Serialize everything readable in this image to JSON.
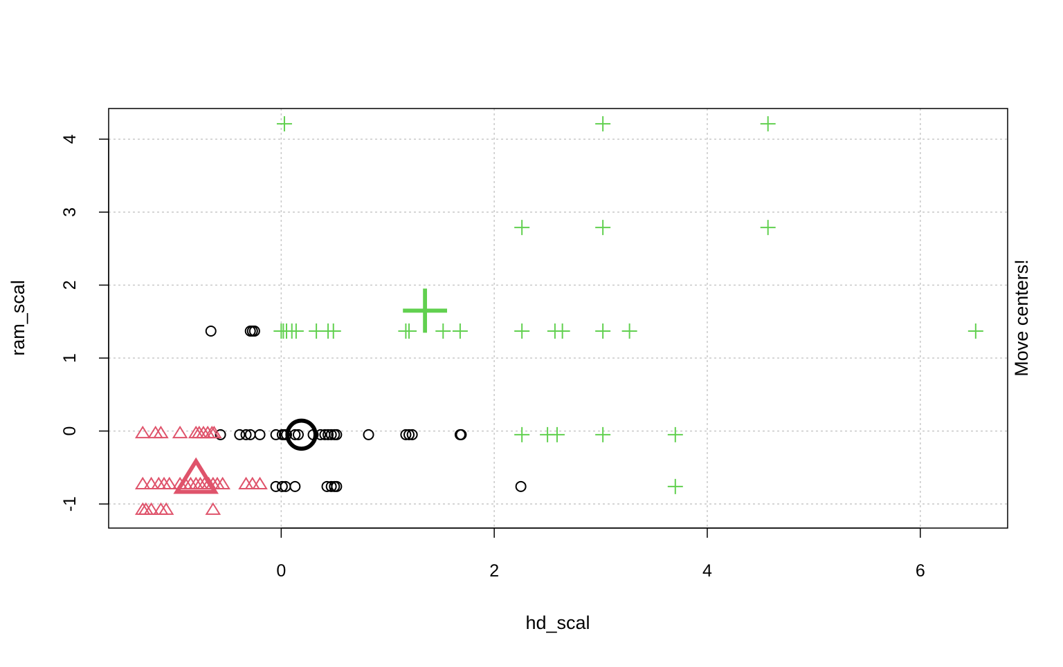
{
  "chart_data": {
    "type": "scatter",
    "title": "",
    "xlabel": "hd_scal",
    "ylabel": "ram_scal",
    "side_text": "Move centers!",
    "xlim": [
      -1.62,
      6.82
    ],
    "ylim": [
      -1.33,
      4.42
    ],
    "x_ticks": [
      0,
      2,
      4,
      6
    ],
    "y_ticks": [
      -1,
      0,
      1,
      2,
      3,
      4
    ],
    "grid": true,
    "legend": "none",
    "series": [
      {
        "marker": "circle",
        "color": "#000000",
        "points": [
          [
            -0.66,
            1.37
          ],
          [
            -0.29,
            1.37
          ],
          [
            -0.27,
            1.37
          ],
          [
            -0.25,
            1.37
          ],
          [
            -0.57,
            -0.05
          ],
          [
            -0.39,
            -0.05
          ],
          [
            -0.33,
            -0.05
          ],
          [
            -0.29,
            -0.05
          ],
          [
            -0.2,
            -0.05
          ],
          [
            -0.05,
            -0.05
          ],
          [
            0.01,
            -0.05
          ],
          [
            0.03,
            -0.05
          ],
          [
            0.05,
            -0.05
          ],
          [
            0.13,
            -0.05
          ],
          [
            0.16,
            -0.05
          ],
          [
            0.3,
            -0.05
          ],
          [
            0.37,
            -0.05
          ],
          [
            0.41,
            -0.05
          ],
          [
            0.44,
            -0.05
          ],
          [
            0.47,
            -0.05
          ],
          [
            0.5,
            -0.05
          ],
          [
            0.52,
            -0.05
          ],
          [
            0.82,
            -0.05
          ],
          [
            1.17,
            -0.05
          ],
          [
            1.2,
            -0.05
          ],
          [
            1.23,
            -0.05
          ],
          [
            1.68,
            -0.05
          ],
          [
            1.69,
            -0.05
          ],
          [
            -0.05,
            -0.76
          ],
          [
            0.01,
            -0.76
          ],
          [
            0.04,
            -0.76
          ],
          [
            0.13,
            -0.76
          ],
          [
            0.43,
            -0.76
          ],
          [
            0.47,
            -0.76
          ],
          [
            0.5,
            -0.76
          ],
          [
            0.52,
            -0.76
          ],
          [
            2.25,
            -0.76
          ]
        ]
      },
      {
        "marker": "triangle",
        "color": "#DF536B",
        "points": [
          [
            -1.3,
            -0.03
          ],
          [
            -1.18,
            -0.03
          ],
          [
            -1.13,
            -0.03
          ],
          [
            -0.95,
            -0.03
          ],
          [
            -0.8,
            -0.03
          ],
          [
            -0.77,
            -0.03
          ],
          [
            -0.73,
            -0.03
          ],
          [
            -0.69,
            -0.03
          ],
          [
            -0.65,
            -0.03
          ],
          [
            -0.63,
            -0.03
          ],
          [
            -1.3,
            -0.73
          ],
          [
            -1.22,
            -0.73
          ],
          [
            -1.15,
            -0.73
          ],
          [
            -1.1,
            -0.73
          ],
          [
            -1.05,
            -0.73
          ],
          [
            -0.95,
            -0.73
          ],
          [
            -0.9,
            -0.73
          ],
          [
            -0.85,
            -0.73
          ],
          [
            -0.8,
            -0.73
          ],
          [
            -0.76,
            -0.73
          ],
          [
            -0.72,
            -0.73
          ],
          [
            -0.68,
            -0.73
          ],
          [
            -0.64,
            -0.73
          ],
          [
            -0.6,
            -0.73
          ],
          [
            -0.55,
            -0.73
          ],
          [
            -0.33,
            -0.73
          ],
          [
            -0.27,
            -0.73
          ],
          [
            -0.2,
            -0.73
          ],
          [
            -1.3,
            -1.08
          ],
          [
            -1.27,
            -1.08
          ],
          [
            -1.22,
            -1.08
          ],
          [
            -1.13,
            -1.08
          ],
          [
            -1.08,
            -1.08
          ],
          [
            -0.64,
            -1.08
          ]
        ]
      },
      {
        "marker": "plus",
        "color": "#61D04F",
        "points": [
          [
            0.03,
            4.21
          ],
          [
            3.02,
            4.21
          ],
          [
            4.57,
            4.21
          ],
          [
            2.26,
            2.79
          ],
          [
            3.02,
            2.79
          ],
          [
            4.57,
            2.79
          ],
          [
            0.0,
            1.37
          ],
          [
            0.02,
            1.37
          ],
          [
            0.05,
            1.37
          ],
          [
            0.1,
            1.37
          ],
          [
            0.14,
            1.37
          ],
          [
            0.33,
            1.37
          ],
          [
            0.44,
            1.37
          ],
          [
            0.49,
            1.37
          ],
          [
            1.17,
            1.37
          ],
          [
            1.2,
            1.37
          ],
          [
            1.52,
            1.37
          ],
          [
            1.68,
            1.37
          ],
          [
            2.26,
            1.37
          ],
          [
            2.57,
            1.37
          ],
          [
            2.64,
            1.37
          ],
          [
            3.02,
            1.37
          ],
          [
            3.27,
            1.37
          ],
          [
            6.52,
            1.37
          ],
          [
            2.26,
            -0.05
          ],
          [
            2.5,
            -0.05
          ],
          [
            2.59,
            -0.05
          ],
          [
            3.02,
            -0.05
          ],
          [
            3.7,
            -0.05
          ],
          [
            3.7,
            -0.76
          ]
        ]
      }
    ],
    "centers": [
      {
        "marker": "circle",
        "color": "#000000",
        "x": 0.19,
        "y": -0.05
      },
      {
        "marker": "triangle",
        "color": "#DF536B",
        "x": -0.8,
        "y": -0.66
      },
      {
        "marker": "plus",
        "color": "#61D04F",
        "x": 1.35,
        "y": 1.65
      }
    ]
  }
}
